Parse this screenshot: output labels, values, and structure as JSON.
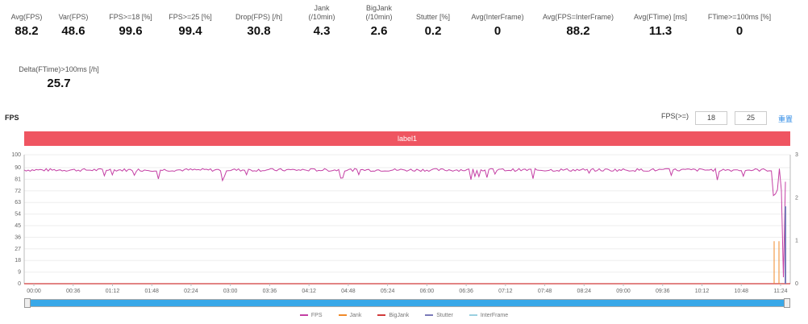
{
  "metrics": [
    {
      "label": "Avg(FPS)",
      "value": "88.2"
    },
    {
      "label": "Var(FPS)",
      "value": "48.6"
    },
    {
      "label": "FPS>=18 [%]",
      "value": "99.6"
    },
    {
      "label": "FPS>=25 [%]",
      "value": "99.4"
    },
    {
      "label": "Drop(FPS) [/h]",
      "value": "30.8"
    },
    {
      "label": "Jank\n(/10min)",
      "value": "4.3"
    },
    {
      "label": "BigJank\n(/10min)",
      "value": "2.6"
    },
    {
      "label": "Stutter [%]",
      "value": "0.2"
    },
    {
      "label": "Avg(InterFrame)",
      "value": "0"
    },
    {
      "label": "Avg(FPS=InterFrame)",
      "value": "88.2"
    },
    {
      "label": "Avg(FTime) [ms]",
      "value": "11.3"
    },
    {
      "label": "FTime>=100ms [%]",
      "value": "0"
    },
    {
      "label": "Delta(FTime)>100ms [/h]",
      "value": "25.7"
    }
  ],
  "section_title": "FPS",
  "fps_control": {
    "label": "FPS(>=)",
    "value1": "18",
    "value2": "25",
    "reset": "重置"
  },
  "label_bar": "label1",
  "colors": {
    "fps": "#c43fa4",
    "jank": "#f08a2a",
    "bigjank": "#d13a3a",
    "stutter": "#7a7ab8",
    "label_bar": "#ef5561",
    "slider": "#38a8e8"
  },
  "chart_data": {
    "type": "line",
    "y_left_ticks": [
      "0",
      "9",
      "18",
      "27",
      "36",
      "45",
      "54",
      "63",
      "72",
      "81",
      "90",
      "100"
    ],
    "y_right_ticks": [
      "0",
      "1",
      "2",
      "3"
    ],
    "x_ticks": [
      "00:00",
      "00:36",
      "01:12",
      "01:48",
      "02:24",
      "03:00",
      "03:36",
      "04:12",
      "04:48",
      "05:24",
      "06:00",
      "06:36",
      "07:12",
      "07:48",
      "08:24",
      "09:00",
      "09:36",
      "10:12",
      "10:48",
      "11:24"
    ],
    "ylim": [
      0,
      100
    ],
    "series": [
      {
        "name": "FPS",
        "baseline": 88.2
      },
      {
        "name": "Jank"
      },
      {
        "name": "BigJank"
      },
      {
        "name": "Stutter"
      },
      {
        "name": "InterFrame"
      }
    ],
    "slider_start": "00:00",
    "slider_end": "11:24"
  },
  "legend": [
    {
      "name": "FPS",
      "color": "#c43fa4"
    },
    {
      "name": "Jank",
      "color": "#f08a2a"
    },
    {
      "name": "BigJank",
      "color": "#d13a3a"
    },
    {
      "name": "Stutter",
      "color": "#7a7ab8"
    },
    {
      "name": "InterFrame",
      "color": "#9ad0e0"
    }
  ]
}
